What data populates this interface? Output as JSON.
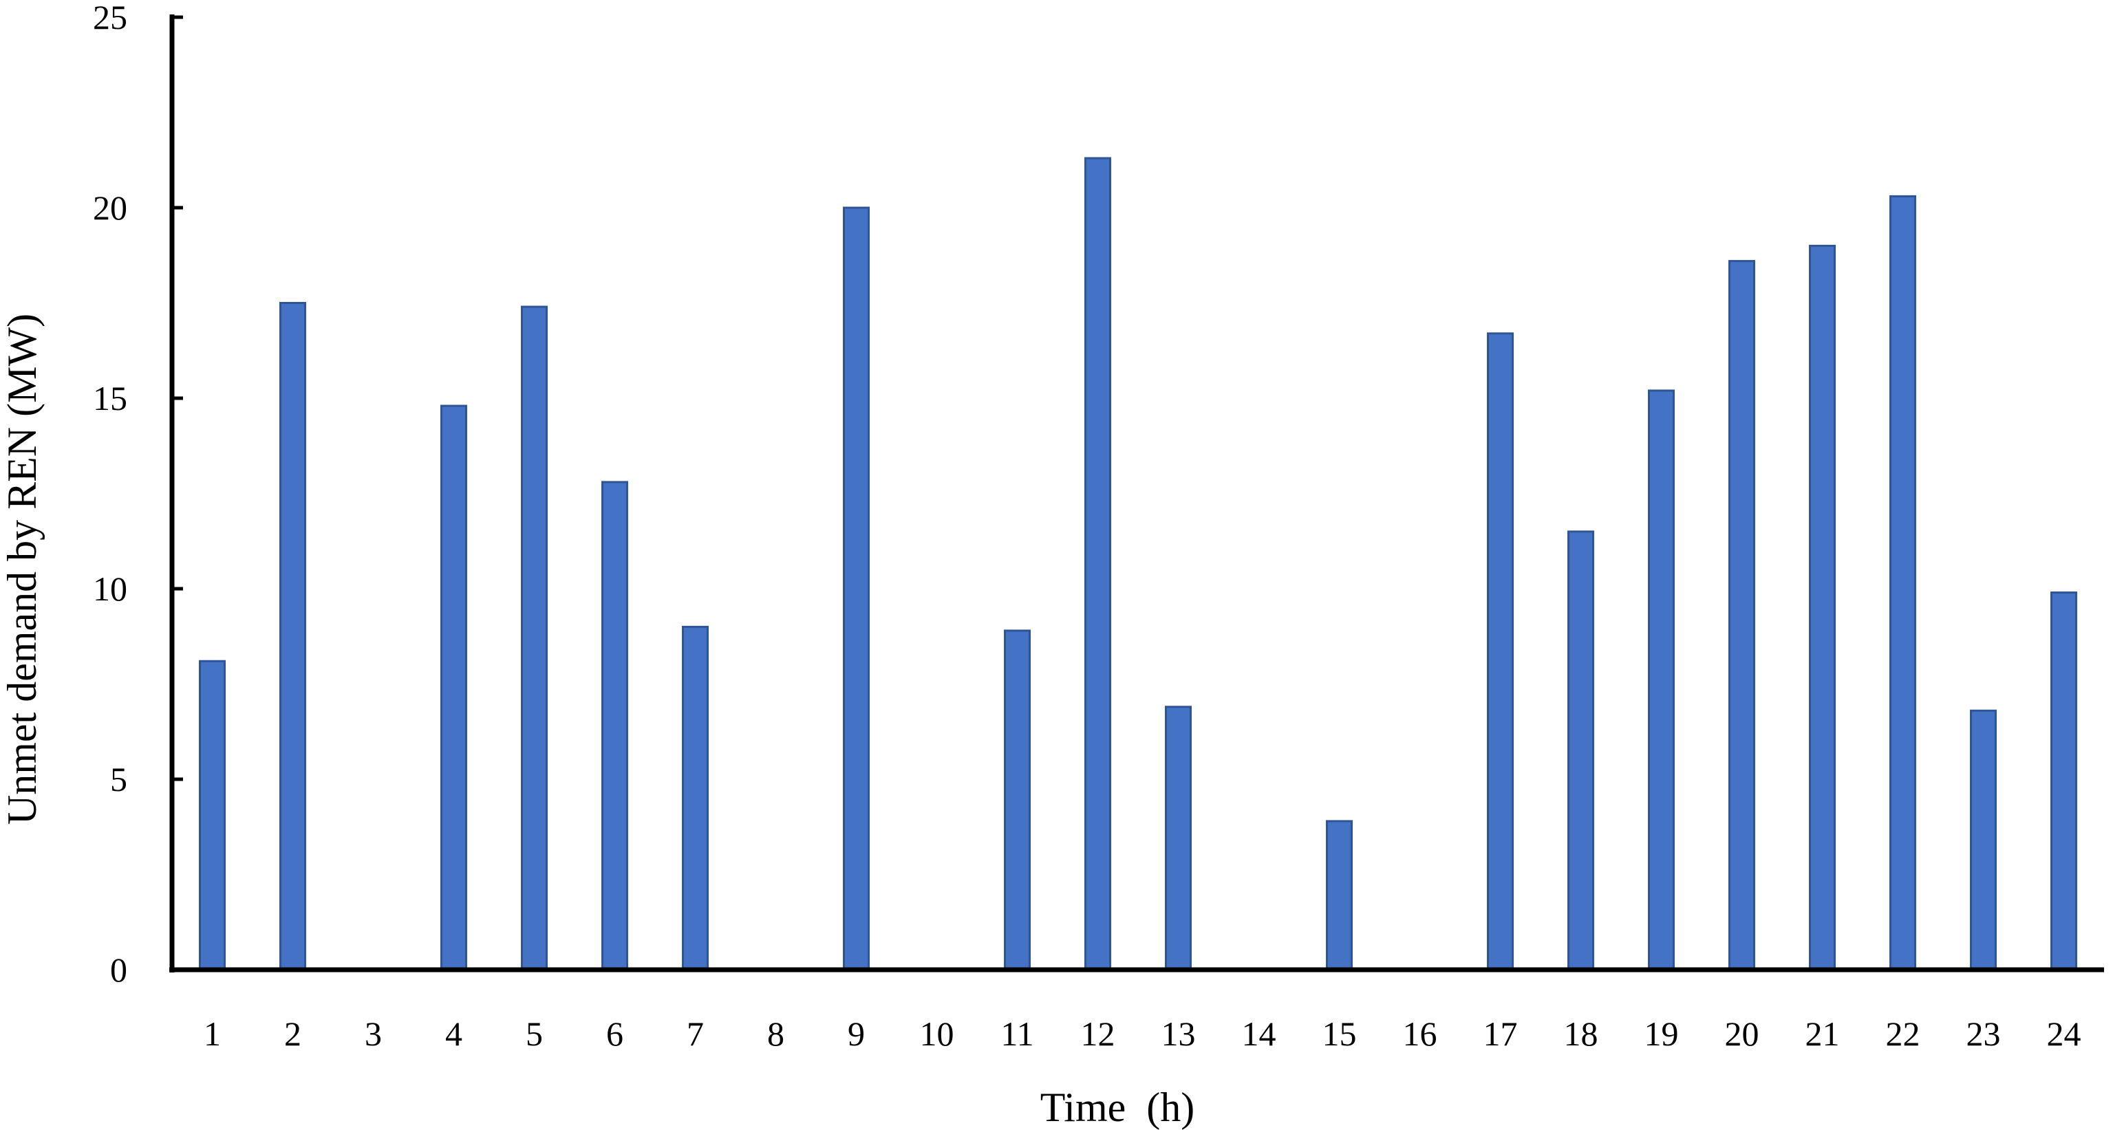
{
  "chart_data": {
    "type": "bar",
    "title": "",
    "xlabel": "Time  (h)",
    "ylabel": "Unmet demand by REN (MW)",
    "categories": [
      "1",
      "2",
      "3",
      "4",
      "5",
      "6",
      "7",
      "8",
      "9",
      "10",
      "11",
      "12",
      "13",
      "14",
      "15",
      "16",
      "17",
      "18",
      "19",
      "20",
      "21",
      "22",
      "23",
      "24"
    ],
    "series": [
      {
        "values": [
          8.1,
          17.5,
          0,
          14.8,
          17.4,
          12.8,
          9.0,
          0,
          20.0,
          0,
          8.9,
          21.3,
          6.9,
          0,
          3.9,
          0,
          16.7,
          11.5,
          15.2,
          18.6,
          19.0,
          20.3,
          6.8,
          9.9
        ],
        "color": "#4472C4"
      }
    ],
    "ylim": [
      0,
      25
    ],
    "yticks": [
      0,
      5,
      10,
      15,
      20,
      25
    ],
    "grid": false,
    "legend": "none"
  }
}
